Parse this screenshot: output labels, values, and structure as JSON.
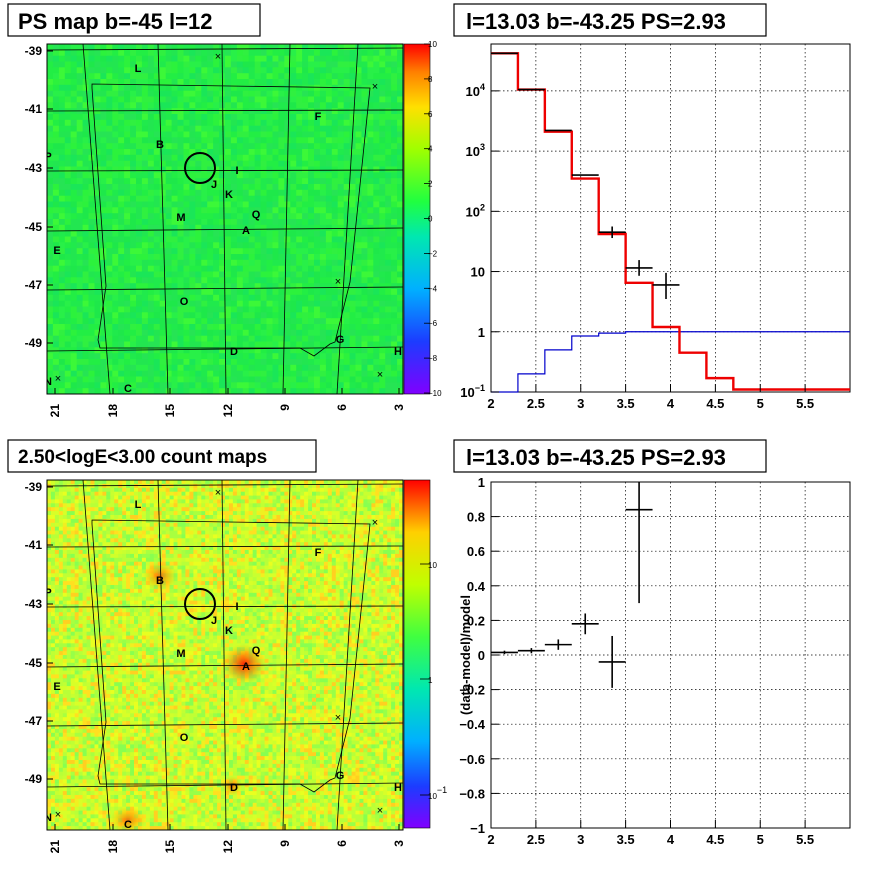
{
  "chart_data": [
    {
      "type": "heatmap",
      "title": "PS map b=-45 l=12",
      "x_ticks": [
        "21",
        "18",
        "15",
        "12",
        "9",
        "6",
        "3"
      ],
      "y_ticks": [
        "-39",
        "-41",
        "-43",
        "-45",
        "-47",
        "-49"
      ],
      "colorbar_ticks": [
        "10",
        "8",
        "6",
        "4",
        "2",
        "0",
        "−2",
        "−4",
        "−6",
        "−8",
        "−10"
      ],
      "colorbar_range": [
        -10,
        10
      ],
      "sources": [
        "L",
        "F",
        "B",
        "P",
        "I",
        "J",
        "K",
        "M",
        "Q",
        "A",
        "E",
        "O",
        "G",
        "D",
        "H",
        "N",
        "C"
      ],
      "circle": {
        "l": 13.03,
        "b": -43.25
      }
    },
    {
      "type": "line",
      "title": "l=13.03 b=-43.25 PS=2.93",
      "xlim": [
        2,
        6
      ],
      "ylim_log": [
        0.1,
        60000
      ],
      "x_ticks": [
        "2",
        "2.5",
        "3",
        "3.5",
        "4",
        "4.5",
        "5",
        "5.5"
      ],
      "y_tick_labels": [
        "10^4",
        "10^3",
        "10^2",
        "10",
        "1",
        "10^-1"
      ],
      "grid": true,
      "model": {
        "edges": [
          2.0,
          2.3,
          2.6,
          2.9,
          3.2,
          3.5,
          3.8,
          4.1,
          4.4,
          4.7,
          6.0
        ],
        "values": [
          42000,
          10500,
          2100,
          350,
          42,
          6.5,
          1.2,
          0.45,
          0.17,
          0.11
        ]
      },
      "background": {
        "edges": [
          2.0,
          2.3,
          2.6,
          2.9,
          3.2,
          3.5,
          6.0
        ],
        "values": [
          0.06,
          0.2,
          0.5,
          0.85,
          0.95,
          1.0
        ]
      },
      "data_points": [
        {
          "x": 2.15,
          "y": 42000,
          "xerr": 0.15
        },
        {
          "x": 2.45,
          "y": 10500,
          "xerr": 0.15
        },
        {
          "x": 2.75,
          "y": 2200,
          "xerr": 0.15
        },
        {
          "x": 3.05,
          "y": 400,
          "xerr": 0.15
        },
        {
          "x": 3.35,
          "y": 45,
          "xerr": 0.15,
          "ylo": 36,
          "yhi": 56
        },
        {
          "x": 3.65,
          "y": 11.5,
          "xerr": 0.15,
          "ylo": 8.5,
          "yhi": 15.5
        },
        {
          "x": 3.95,
          "y": 6.0,
          "xerr": 0.15,
          "ylo": 3.5,
          "yhi": 9.5
        }
      ]
    },
    {
      "type": "heatmap",
      "title": "2.50<logE<3.00 count maps",
      "x_ticks": [
        "21",
        "18",
        "15",
        "12",
        "9",
        "6",
        "3"
      ],
      "y_ticks": [
        "-39",
        "-41",
        "-43",
        "-45",
        "-47",
        "-49"
      ],
      "colorbar_ticks": [
        "10",
        "1",
        "10^-1"
      ],
      "colorbar_scale": "log",
      "sources": [
        "L",
        "F",
        "B",
        "P",
        "I",
        "J",
        "K",
        "M",
        "Q",
        "A",
        "E",
        "O",
        "G",
        "D",
        "H",
        "N",
        "C"
      ]
    },
    {
      "type": "scatter",
      "title": "l=13.03 b=-43.25 PS=2.93",
      "ylabel": "(data-model)/model",
      "xlim": [
        2,
        6
      ],
      "ylim": [
        -1,
        1
      ],
      "x_ticks": [
        "2",
        "2.5",
        "3",
        "3.5",
        "4",
        "4.5",
        "5",
        "5.5"
      ],
      "y_ticks": [
        "1",
        "0.8",
        "0.6",
        "0.4",
        "0.2",
        "0",
        "−0.2",
        "−0.4",
        "−0.6",
        "−0.8",
        "−1"
      ],
      "grid": true,
      "points": [
        {
          "x": 2.15,
          "y": 0.015,
          "xerr": 0.15,
          "yerr": 0.01
        },
        {
          "x": 2.45,
          "y": 0.025,
          "xerr": 0.15,
          "yerr": 0.015
        },
        {
          "x": 2.75,
          "y": 0.06,
          "xerr": 0.15,
          "yerr": 0.03
        },
        {
          "x": 3.05,
          "y": 0.18,
          "xerr": 0.15,
          "yerr": 0.06
        },
        {
          "x": 3.35,
          "y": -0.04,
          "xerr": 0.15,
          "yerr": 0.15
        },
        {
          "x": 3.65,
          "y": 0.84,
          "xerr": 0.15,
          "yerr": 0.54
        }
      ]
    }
  ]
}
